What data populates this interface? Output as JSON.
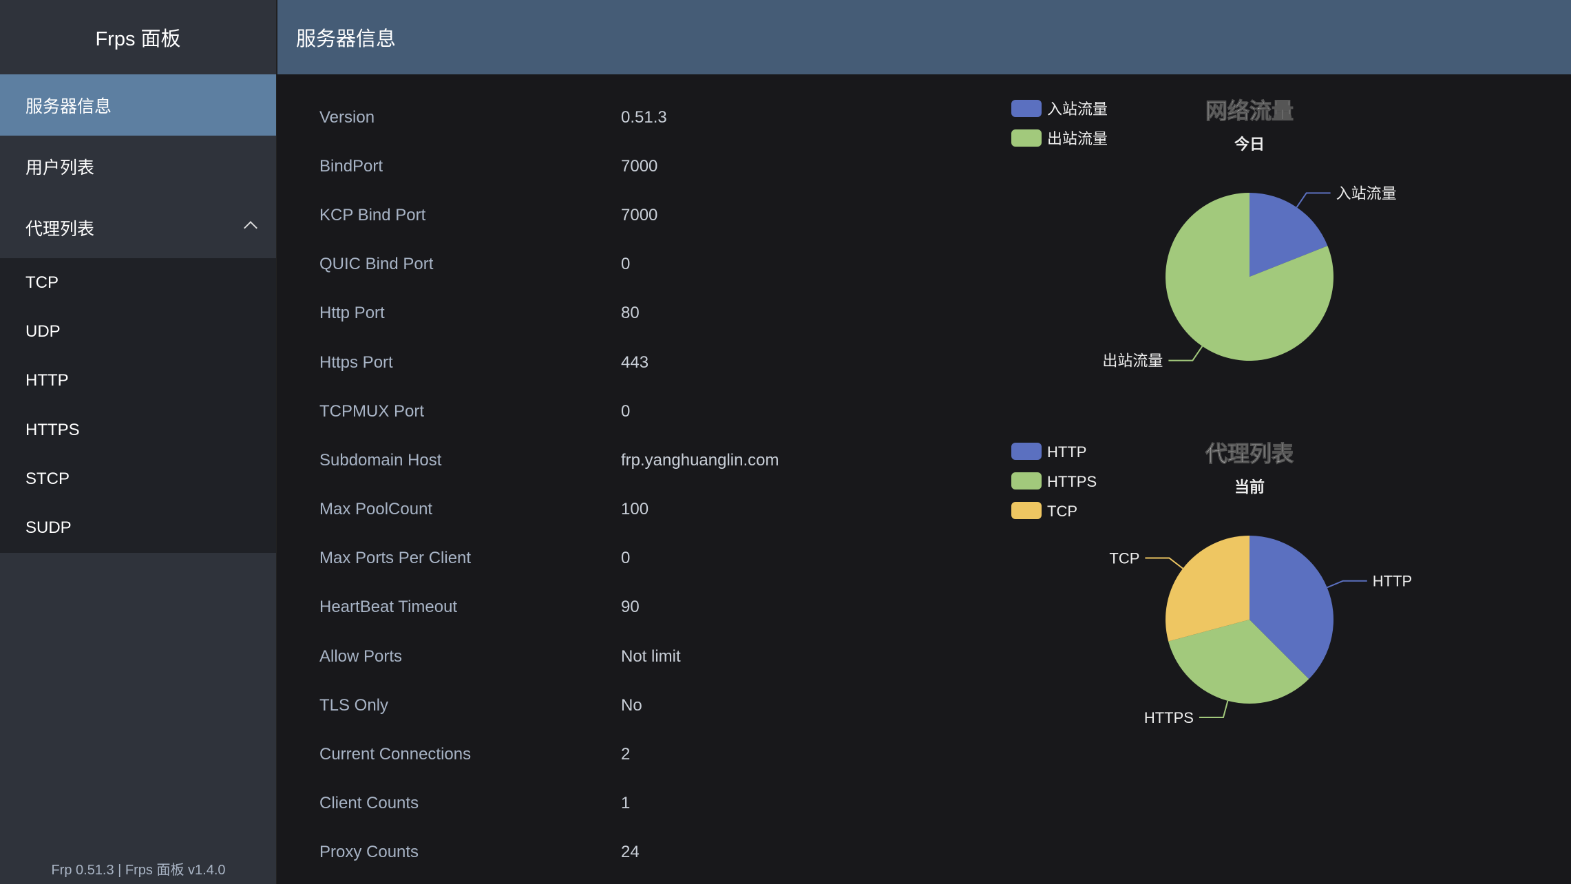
{
  "brand": "Frps 面板",
  "header_title": "服务器信息",
  "nav": [
    {
      "label": "服务器信息",
      "active": true
    },
    {
      "label": "用户列表"
    },
    {
      "label": "代理列表",
      "expanded": true
    }
  ],
  "proxy_submenu": [
    "TCP",
    "UDP",
    "HTTP",
    "HTTPS",
    "STCP",
    "SUDP"
  ],
  "footer": "Frp 0.51.3 | Frps 面板 v1.4.0",
  "server_info": [
    {
      "key": "Version",
      "value": "0.51.3"
    },
    {
      "key": "BindPort",
      "value": "7000"
    },
    {
      "key": "KCP Bind Port",
      "value": "7000"
    },
    {
      "key": "QUIC Bind Port",
      "value": "0"
    },
    {
      "key": "Http Port",
      "value": "80"
    },
    {
      "key": "Https Port",
      "value": "443"
    },
    {
      "key": "TCPMUX Port",
      "value": "0"
    },
    {
      "key": "Subdomain Host",
      "value": "frp.yanghuanglin.com"
    },
    {
      "key": "Max PoolCount",
      "value": "100"
    },
    {
      "key": "Max Ports Per Client",
      "value": "0"
    },
    {
      "key": "HeartBeat Timeout",
      "value": "90"
    },
    {
      "key": "Allow Ports",
      "value": "Not limit"
    },
    {
      "key": "TLS Only",
      "value": "No"
    },
    {
      "key": "Current Connections",
      "value": "2"
    },
    {
      "key": "Client Counts",
      "value": "1"
    },
    {
      "key": "Proxy Counts",
      "value": "24"
    }
  ],
  "chart_data": [
    {
      "type": "pie",
      "title": "网络流量",
      "subtitle": "今日",
      "legend": "top-left",
      "categories": [
        "入站流量",
        "出站流量"
      ],
      "values": [
        19,
        81
      ],
      "colors": [
        "#5b70c0",
        "#a2c97c"
      ]
    },
    {
      "type": "pie",
      "title": "代理列表",
      "subtitle": "当前",
      "legend": "top-left",
      "categories": [
        "HTTP",
        "HTTPS",
        "TCP"
      ],
      "values": [
        9,
        8,
        7
      ],
      "colors": [
        "#5b70c0",
        "#a2c97c",
        "#eec662"
      ]
    }
  ]
}
